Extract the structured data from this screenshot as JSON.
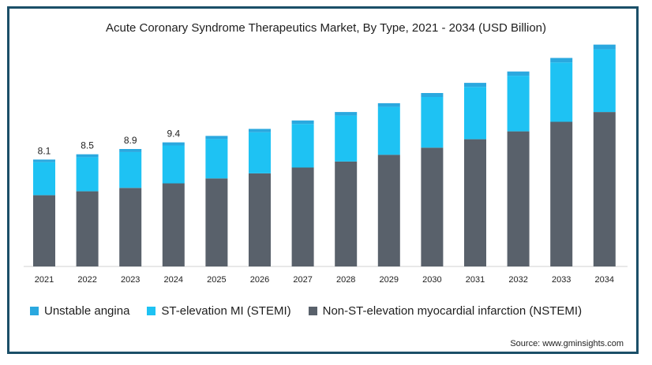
{
  "chart_data": {
    "type": "bar",
    "stacked": true,
    "title": "Acute Coronary Syndrome Therapeutics Market, By Type, 2021 - 2034 (USD Billion)",
    "categories": [
      "2021",
      "2022",
      "2023",
      "2024",
      "2025",
      "2026",
      "2027",
      "2028",
      "2029",
      "2030",
      "2031",
      "2032",
      "2033",
      "2034"
    ],
    "series": [
      {
        "name": "Non-ST-elevation myocardial infarction (NSTEMI)",
        "color": "#59616b",
        "values": [
          5.4,
          5.7,
          5.95,
          6.3,
          6.67,
          7.05,
          7.5,
          7.95,
          8.46,
          9.0,
          9.64,
          10.24,
          10.96,
          11.7
        ]
      },
      {
        "name": "ST-elevation MI (STEMI)",
        "color": "#1ec2f3",
        "values": [
          2.5,
          2.58,
          2.72,
          2.87,
          2.98,
          3.12,
          3.3,
          3.48,
          3.63,
          3.84,
          3.96,
          4.21,
          4.5,
          4.75
        ]
      },
      {
        "name": "Unstable angina",
        "color": "#2aa8df",
        "values": [
          0.2,
          0.22,
          0.23,
          0.23,
          0.24,
          0.25,
          0.26,
          0.27,
          0.28,
          0.3,
          0.31,
          0.32,
          0.34,
          0.36
        ]
      }
    ],
    "data_labels": {
      "2021": "8.1",
      "2022": "8.5",
      "2023": "8.9",
      "2024": "9.4"
    },
    "ylim": [
      0,
      17.5
    ],
    "grid": false,
    "legend_position": "bottom"
  },
  "legend": [
    {
      "label": "Unstable angina",
      "color": "#2aa8df"
    },
    {
      "label": "ST-elevation MI (STEMI)",
      "color": "#1ec2f3"
    },
    {
      "label": "Non-ST-elevation myocardial infarction (NSTEMI)",
      "color": "#59616b"
    }
  ],
  "source": "Source: www.gminsights.com"
}
